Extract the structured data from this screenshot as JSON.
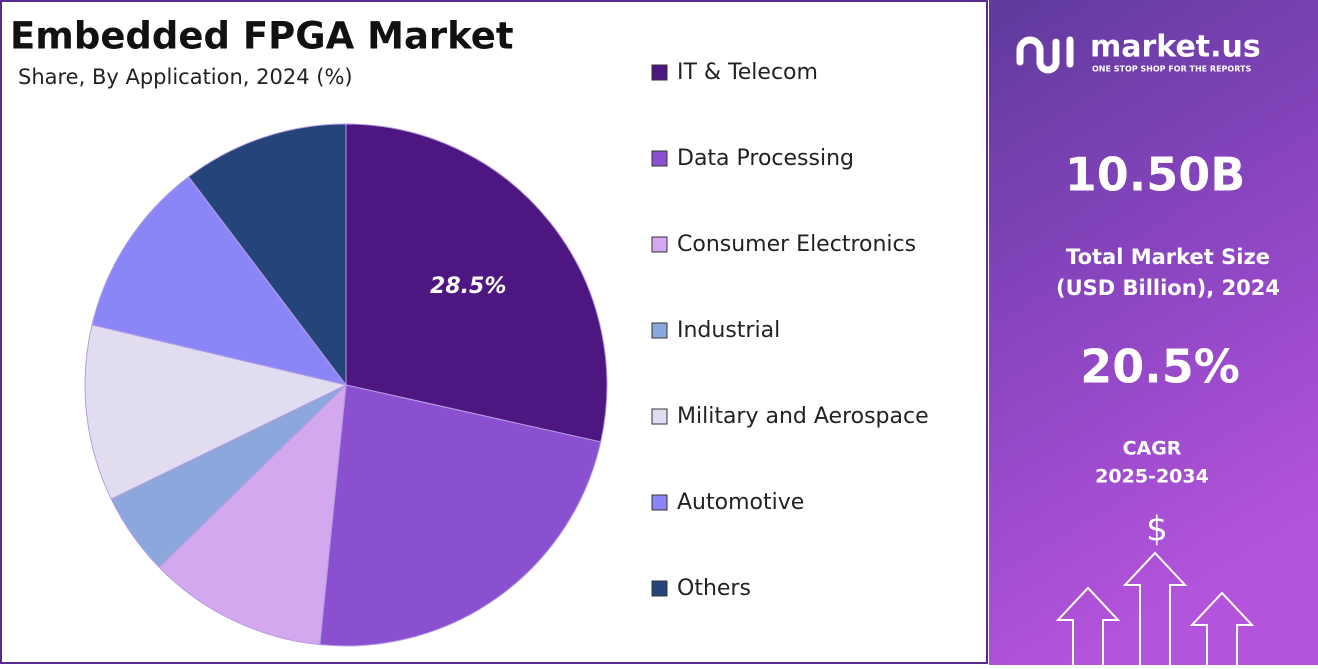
{
  "chart_data": {
    "type": "pie",
    "title": "Embedded FPGA Market",
    "subtitle": "Share, By Application, 2024 (%)",
    "categories": [
      "IT & Telecom",
      "Data Processing",
      "Consumer Electronics",
      "Industrial",
      "Military and Aerospace",
      "Automotive",
      "Others"
    ],
    "values": [
      28.5,
      23.1,
      11.1,
      5.1,
      10.9,
      11.0,
      10.3
    ],
    "value_labels": [
      "28.5%",
      null,
      null,
      null,
      null,
      null,
      null
    ],
    "colors": [
      "#4d1680",
      "#8a50d0",
      "#d4a8ee",
      "#8ba7dc",
      "#e1dcf0",
      "#8b86f8",
      "#25447a"
    ],
    "legend": "right"
  },
  "panel": {
    "brand": "market.us",
    "tagline": "ONE STOP SHOP FOR THE REPORTS",
    "market_size": "10.50B",
    "market_size_label": [
      "Total Market Size",
      "(USD Billion), 2024"
    ],
    "cagr": "20.5%",
    "cagr_label": [
      "CAGR",
      "2025-2034"
    ],
    "currency": "$"
  }
}
